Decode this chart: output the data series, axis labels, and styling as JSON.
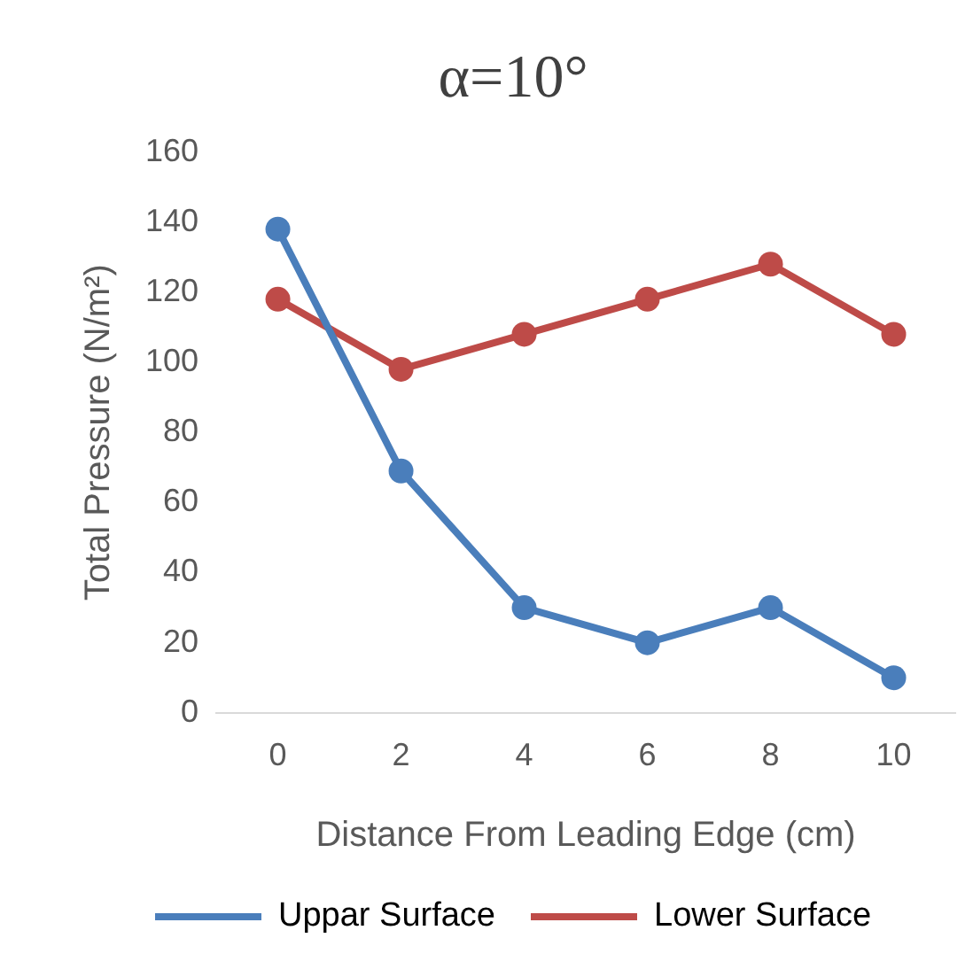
{
  "chart_data": {
    "type": "line",
    "title": "α=10°",
    "xlabel": "Distance From Leading Edge (cm)",
    "ylabel": "Total Pressure (N/m²)",
    "categories": [
      "0",
      "2",
      "4",
      "6",
      "8",
      "10"
    ],
    "series": [
      {
        "name": "Uppar Surface",
        "color": "#4a7ebb",
        "values": [
          138,
          69,
          30,
          20,
          30,
          10
        ]
      },
      {
        "name": "Lower Surface",
        "color": "#be4b48",
        "values": [
          118,
          98,
          108,
          118,
          128,
          108
        ]
      }
    ],
    "ylim": [
      0,
      160
    ],
    "yticks": [
      0,
      20,
      40,
      60,
      80,
      100,
      120,
      140,
      160
    ],
    "grid": false,
    "legend": "bottom",
    "marker": "circle",
    "line_style": "solid"
  }
}
